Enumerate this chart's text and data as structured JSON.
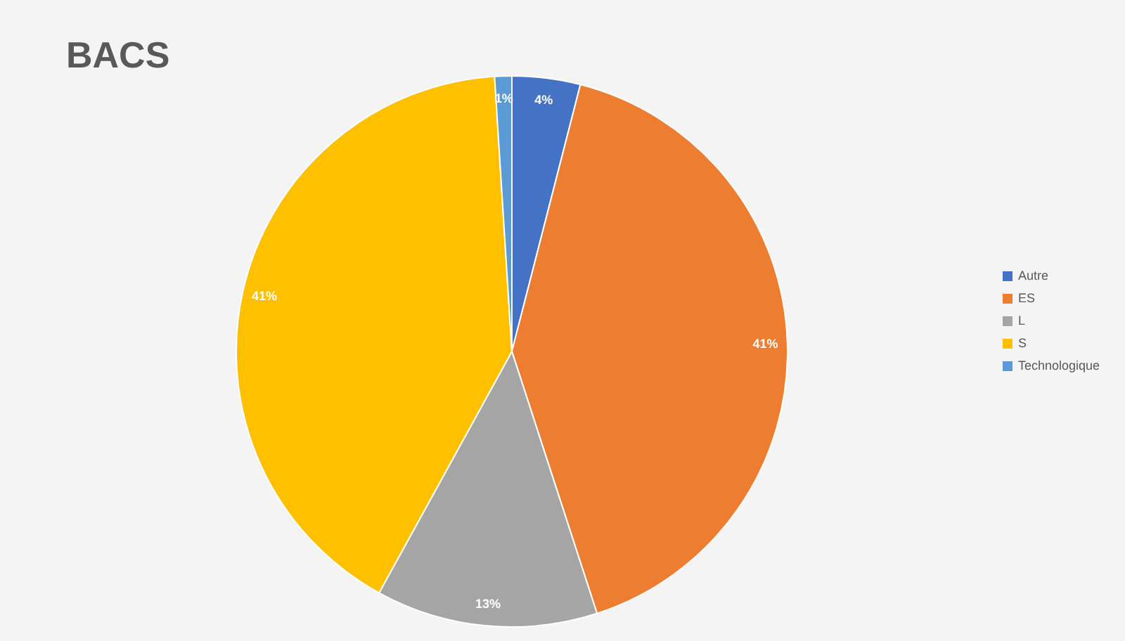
{
  "chart_data": {
    "type": "pie",
    "title": "BACS",
    "categories": [
      "Autre",
      "ES",
      "L",
      "S",
      "Technologique"
    ],
    "values": [
      4,
      41,
      13,
      41,
      1
    ],
    "colors": [
      "#4472c4",
      "#ed7d31",
      "#a5a5a5",
      "#ffc000",
      "#5b9bd5"
    ],
    "value_labels": [
      "4%",
      "41%",
      "13%",
      "41%",
      "1%"
    ],
    "legend": "right"
  }
}
